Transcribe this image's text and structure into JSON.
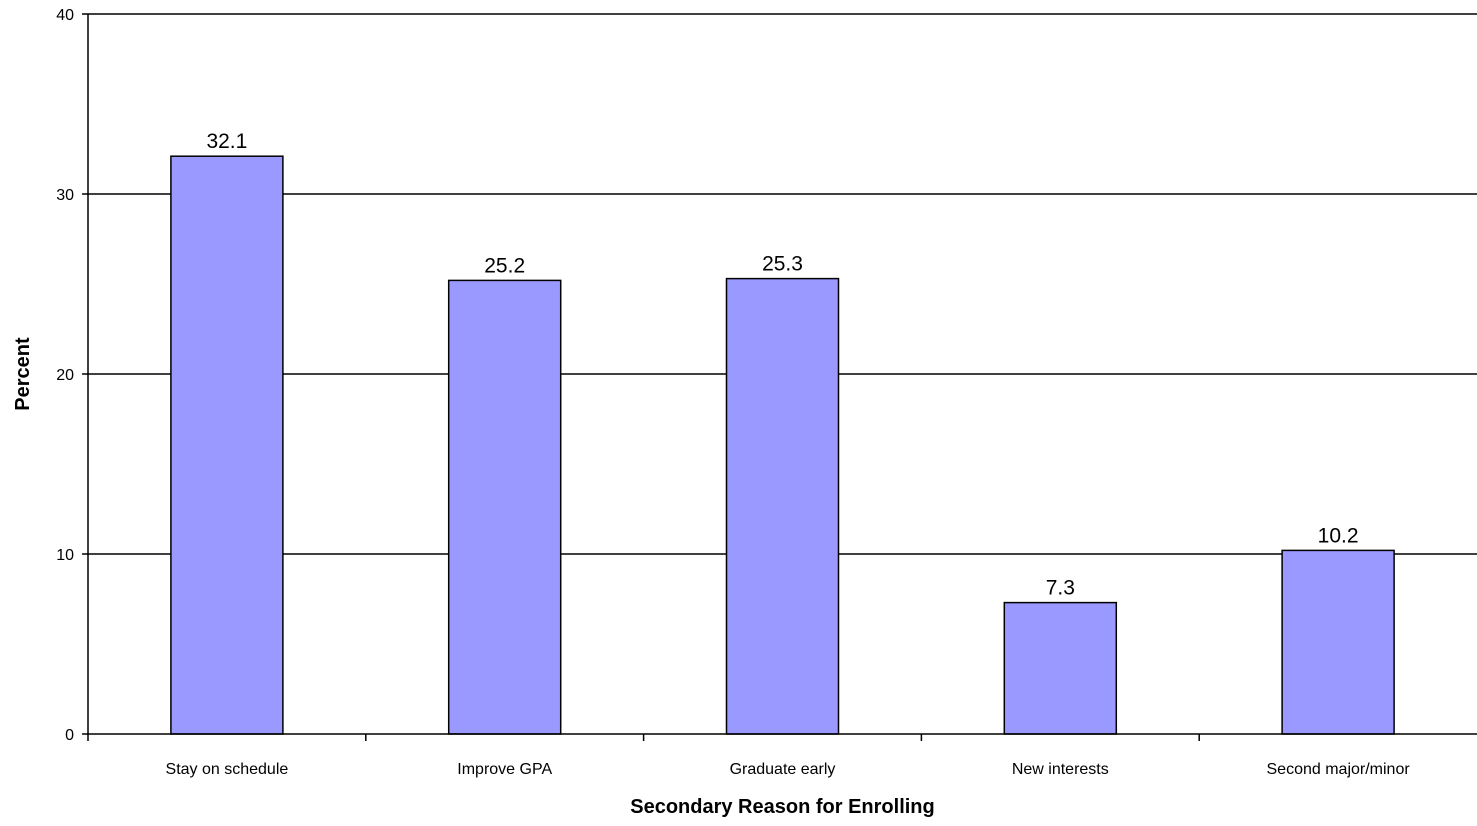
{
  "chart_data": {
    "type": "bar",
    "title": "",
    "xlabel": "Secondary Reason for Enrolling",
    "ylabel": "Percent",
    "categories": [
      "Stay on schedule",
      "Improve GPA",
      "Graduate early",
      "New interests",
      "Second major/minor"
    ],
    "values": [
      32.1,
      25.2,
      25.3,
      7.3,
      10.2
    ],
    "value_labels": [
      "32.1",
      "25.2",
      "25.3",
      "7.3",
      "10.2"
    ],
    "ylim": [
      0,
      40
    ],
    "yticks": [
      0,
      10,
      20,
      30,
      40
    ],
    "ytick_labels": [
      "0",
      "10",
      "20",
      "30",
      "40"
    ],
    "grid": true,
    "legend": "none",
    "bar_color": "#9999ff",
    "bar_edge_color": "#000000"
  }
}
